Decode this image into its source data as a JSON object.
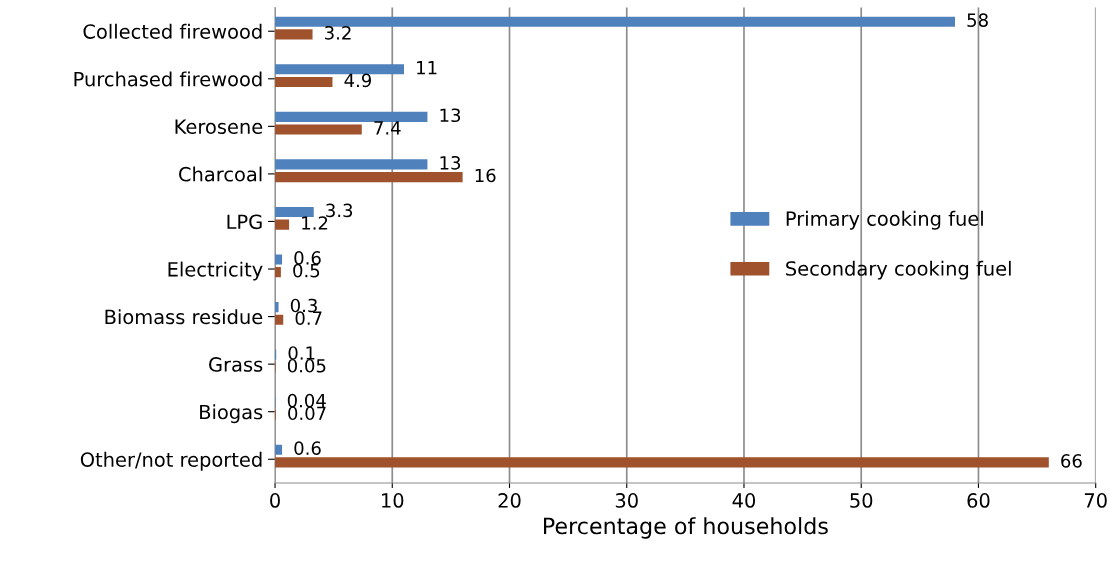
{
  "chart_data": {
    "type": "bar",
    "orientation": "horizontal",
    "xlabel": "Percentage of households",
    "categories": [
      "Collected firewood",
      "Purchased firewood",
      "Kerosene",
      "Charcoal",
      "LPG",
      "Electricity",
      "Biomass residue",
      "Grass",
      "Biogas",
      "Other/not reported"
    ],
    "series": [
      {
        "name": "Primary cooking fuel",
        "color": "#4f81bd",
        "values": [
          58,
          11,
          13,
          13,
          3.3,
          0.6,
          0.3,
          0.1,
          0.04,
          0.6
        ]
      },
      {
        "name": "Secondary cooking fuel",
        "color": "#a0522d",
        "values": [
          3.2,
          4.9,
          7.4,
          16,
          1.2,
          0.5,
          0.7,
          0.05,
          0.07,
          66
        ]
      }
    ],
    "xlim": [
      0,
      70
    ],
    "xticks": [
      0,
      10,
      20,
      30,
      40,
      50,
      60,
      70
    ],
    "grid": "x",
    "legend": "right",
    "data_labels": true
  }
}
